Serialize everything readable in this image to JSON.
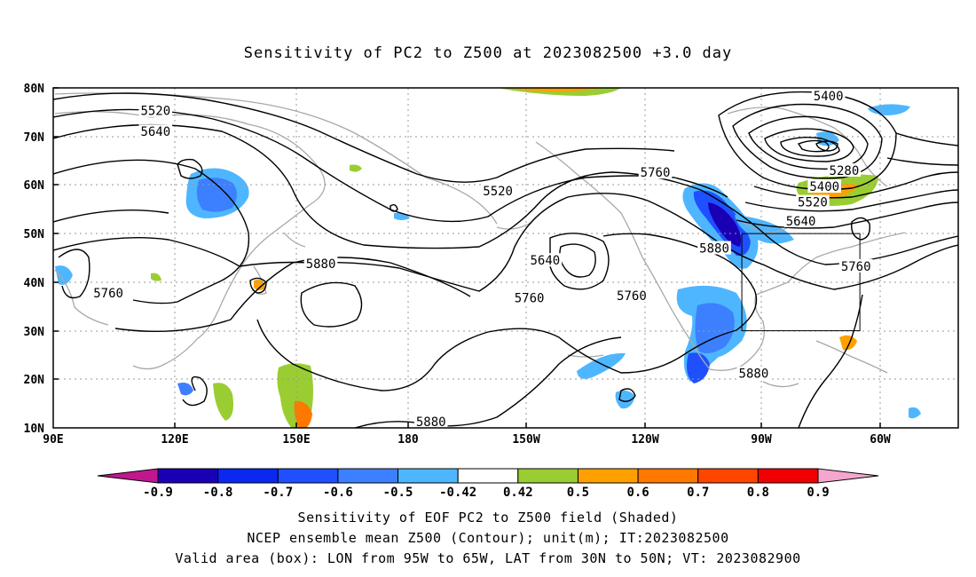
{
  "title": "Sensitivity of PC2 to Z500 at 2023082500 +3.0 day",
  "lat_labels": [
    "80N",
    "70N",
    "60N",
    "50N",
    "40N",
    "30N",
    "20N",
    "10N"
  ],
  "lon_labels": [
    "90E",
    "120E",
    "150E",
    "180",
    "150W",
    "120W",
    "90W",
    "60W"
  ],
  "contour_labels": [
    {
      "text": "5520",
      "lat": 75.3,
      "lon": 116
    },
    {
      "text": "5640",
      "lat": 71.0,
      "lon": 116
    },
    {
      "text": "5760",
      "lat": 37.8,
      "lon": 104
    },
    {
      "text": "5880",
      "lat": 43.8,
      "lon": 158
    },
    {
      "text": "5880",
      "lat": 11.3,
      "lon": 186
    },
    {
      "text": "5520",
      "lat": 58.8,
      "lon": 203
    },
    {
      "text": "5640",
      "lat": 44.5,
      "lon": 215
    },
    {
      "text": "5760",
      "lat": 36.8,
      "lon": 211
    },
    {
      "text": "5760",
      "lat": 37.2,
      "lon": 237
    },
    {
      "text": "5760",
      "lat": 62.6,
      "lon": 243
    },
    {
      "text": "5880",
      "lat": 47.0,
      "lon": 258
    },
    {
      "text": "5880",
      "lat": 21.2,
      "lon": 268
    },
    {
      "text": "5400",
      "lat": 78.4,
      "lon": 287
    },
    {
      "text": "5280",
      "lat": 63.0,
      "lon": 291
    },
    {
      "text": "5400",
      "lat": 59.7,
      "lon": 286
    },
    {
      "text": "5520",
      "lat": 56.5,
      "lon": 283
    },
    {
      "text": "5640",
      "lat": 52.6,
      "lon": 280
    },
    {
      "text": "5760",
      "lat": 43.3,
      "lon": 294
    }
  ],
  "valid_box": {
    "lon_min": 265,
    "lon_max": 295,
    "lat_min": 30,
    "lat_max": 50
  },
  "colorbar": {
    "labels": [
      "-0.9",
      "-0.8",
      "-0.7",
      "-0.6",
      "-0.5",
      "-0.42",
      "0.42",
      "0.5",
      "0.6",
      "0.7",
      "0.8",
      "0.9"
    ],
    "colors": [
      "#1a00b4",
      "#0a28f0",
      "#1e50ff",
      "#3c80ff",
      "#4eb6ff",
      "#ffffff",
      "#9acd32",
      "#ffa000",
      "#ff7800",
      "#ff4600",
      "#f00000"
    ],
    "low_end_color": "#c0178f",
    "high_end_color": "#f5a6cf"
  },
  "footer": [
    "Sensitivity of EOF PC2 to Z500 field (Shaded)",
    "NCEP ensemble mean Z500 (Contour); unit(m); IT:2023082500",
    "Valid area (box): LON from 95W to 65W, LAT from 30N to 50N; VT: 2023082900"
  ]
}
